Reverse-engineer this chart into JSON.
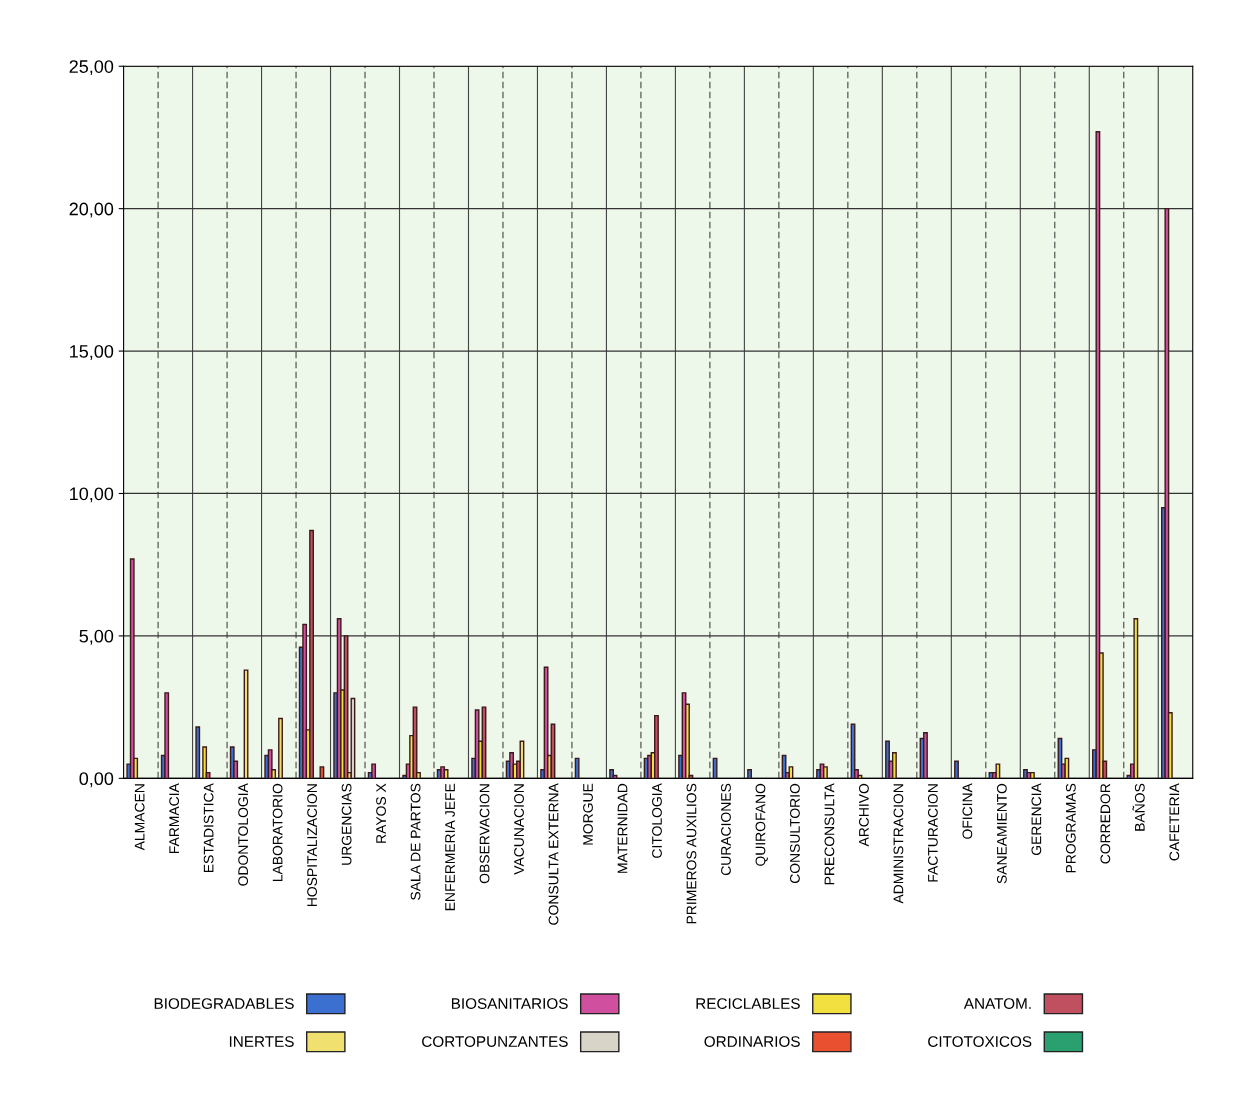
{
  "chart_data": {
    "type": "bar",
    "categories": [
      "ALMACEN",
      "FARMACIA",
      "ESTADISTICA",
      "ODONTOLOGIA",
      "LABORATORIO",
      "HOSPITALIZACION",
      "URGENCIAS",
      "RAYOS X",
      "SALA DE PARTOS",
      "ENFERMERIA JEFE",
      "OBSERVACION",
      "VACUNACION",
      "CONSULTA EXTERNA",
      "MORGUE",
      "MATERNIDAD",
      "CITOLOGIA",
      "PRIMEROS AUXILIOS",
      "CURACIONES",
      "QUIROFANO",
      "CONSULTORIO",
      "PRECONSULTA",
      "ARCHIVO",
      "ADMINISTRACION",
      "FACTURACION",
      "OFICINA",
      "SANEAMIENTO",
      "GERENCIA",
      "PROGRAMAS",
      "CORREDOR",
      "BAÑOS",
      "CAFETERIA"
    ],
    "series": [
      {
        "name": "BIODEGRADABLES",
        "color": "#3b6fd0",
        "values": [
          0.5,
          0.8,
          1.8,
          1.1,
          0.8,
          4.6,
          3.0,
          0.2,
          0.1,
          0.3,
          0.7,
          0.6,
          0.3,
          0.7,
          0.3,
          0.7,
          0.8,
          0.7,
          0.3,
          0.8,
          0.3,
          1.9,
          1.3,
          1.4,
          0.6,
          0.2,
          0.3,
          1.4,
          1.0,
          0.1,
          9.5
        ]
      },
      {
        "name": "BIOSANITARIOS",
        "color": "#d04f9f",
        "values": [
          7.7,
          3.0,
          null,
          0.6,
          1.0,
          5.4,
          5.6,
          0.5,
          0.5,
          0.4,
          2.4,
          0.9,
          3.9,
          null,
          0.1,
          0.8,
          3.0,
          null,
          null,
          0.2,
          0.5,
          0.3,
          0.6,
          1.6,
          null,
          0.2,
          0.2,
          0.5,
          22.7,
          0.5,
          20.0
        ]
      },
      {
        "name": "RECICLABLES",
        "color": "#f2e040",
        "values": [
          0.7,
          null,
          1.1,
          null,
          0.3,
          1.7,
          3.1,
          null,
          1.5,
          0.3,
          1.3,
          0.5,
          0.8,
          null,
          null,
          0.9,
          2.6,
          null,
          null,
          0.4,
          0.4,
          0.1,
          0.9,
          null,
          null,
          0.5,
          0.2,
          0.7,
          4.4,
          5.6,
          2.3
        ]
      },
      {
        "name": "ANATOM.",
        "color": "#c05060",
        "values": [
          null,
          null,
          0.2,
          null,
          null,
          8.7,
          5.0,
          null,
          2.5,
          null,
          2.5,
          0.6,
          1.9,
          null,
          null,
          2.2,
          0.1,
          null,
          null,
          null,
          null,
          null,
          null,
          null,
          null,
          null,
          null,
          null,
          0.6,
          null,
          null
        ]
      },
      {
        "name": "INERTES",
        "color": "#f0e070",
        "values": [
          null,
          null,
          null,
          3.8,
          2.1,
          null,
          0.2,
          null,
          0.2,
          null,
          null,
          1.3,
          null,
          null,
          null,
          null,
          null,
          null,
          null,
          null,
          null,
          null,
          null,
          null,
          null,
          null,
          null,
          null,
          null,
          null,
          null
        ]
      },
      {
        "name": "CORTOPUNZANTES",
        "color": "#d8d4c8",
        "values": [
          null,
          null,
          null,
          null,
          null,
          null,
          2.8,
          null,
          null,
          null,
          null,
          null,
          null,
          null,
          null,
          null,
          null,
          null,
          null,
          null,
          null,
          null,
          null,
          null,
          null,
          null,
          null,
          null,
          null,
          null,
          null
        ]
      },
      {
        "name": "ORDINARIOS",
        "color": "#e85030",
        "values": [
          null,
          null,
          null,
          null,
          null,
          0.4,
          null,
          null,
          null,
          null,
          null,
          null,
          null,
          null,
          null,
          null,
          null,
          null,
          null,
          null,
          null,
          null,
          null,
          null,
          null,
          null,
          null,
          null,
          null,
          null,
          null
        ]
      },
      {
        "name": "CITOTOXICOS",
        "color": "#2aa070",
        "values": [
          null,
          null,
          null,
          null,
          null,
          null,
          null,
          null,
          null,
          null,
          null,
          null,
          null,
          null,
          null,
          null,
          null,
          null,
          null,
          null,
          null,
          null,
          null,
          null,
          null,
          null,
          null,
          null,
          null,
          null,
          null
        ]
      }
    ],
    "ylim": [
      0,
      25
    ],
    "yticks": [
      {
        "value": 0,
        "label": "0,00"
      },
      {
        "value": 5,
        "label": "5,00"
      },
      {
        "value": 10,
        "label": "10,00"
      },
      {
        "value": 15,
        "label": "15,00"
      },
      {
        "value": 20,
        "label": "20,00"
      },
      {
        "value": 25,
        "label": "25,00"
      }
    ],
    "grid": true,
    "legend": "bottom"
  }
}
